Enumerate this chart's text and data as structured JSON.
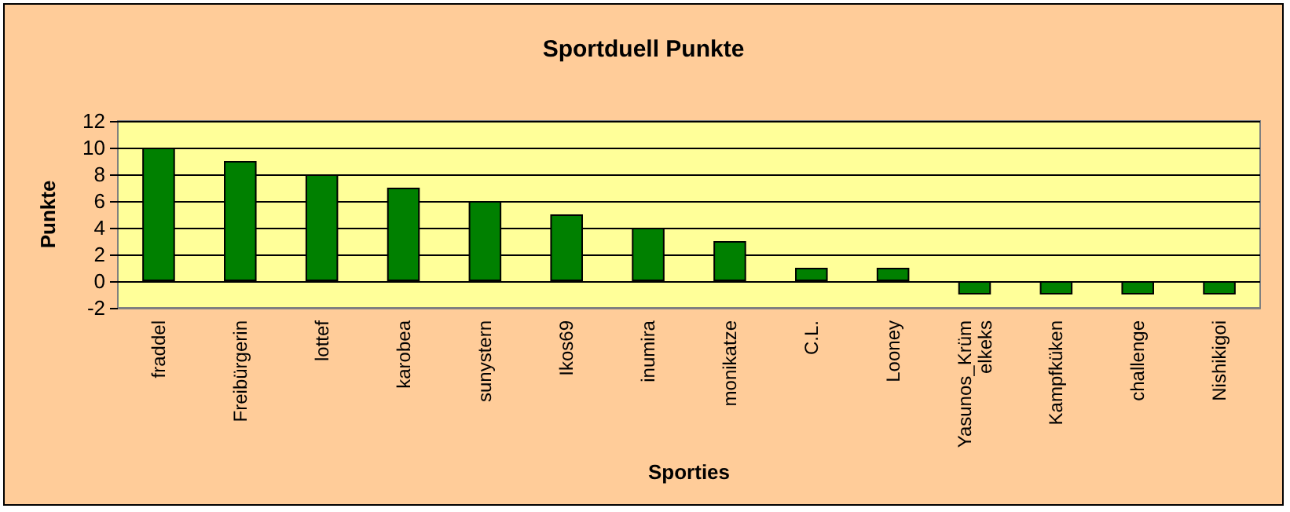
{
  "chart_data": {
    "type": "bar",
    "title": "Sportduell Punkte",
    "xlabel": "Sporties",
    "ylabel": "Punkte",
    "categories": [
      "fraddel",
      "Freibürgerin",
      "lottef",
      "karobea",
      "sunystern",
      "Ikos69",
      "inumira",
      "monikatze",
      "C.L.",
      "Looney",
      "Yasunos_Krümelkeks",
      "Kampfküken",
      "challenge",
      "Nishikigoi"
    ],
    "values": [
      10,
      9,
      8,
      7,
      6,
      5,
      4,
      3,
      1,
      1,
      -1,
      -1,
      -1,
      -1
    ],
    "color": "#008000",
    "ylim": [
      -2,
      12
    ],
    "yticks": [
      -2,
      0,
      2,
      4,
      6,
      8,
      10,
      12
    ],
    "grid": "y"
  }
}
